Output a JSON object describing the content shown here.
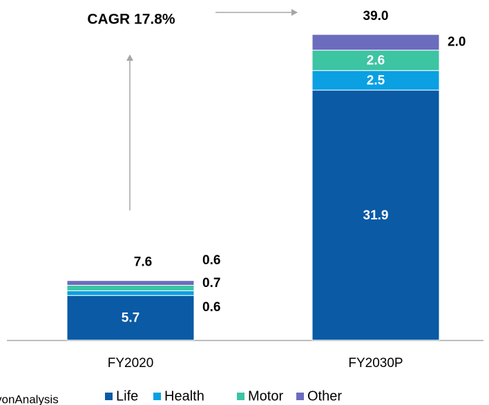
{
  "chart_data": {
    "type": "stacked-bar",
    "annotation": "CAGR 17.8%",
    "source": "yonAnalysis",
    "categories": [
      "FY2020",
      "FY2030P"
    ],
    "series": [
      {
        "name": "Life",
        "color": "#0a5aa5",
        "values": [
          5.7,
          31.9
        ]
      },
      {
        "name": "Health",
        "color": "#0aa0e2",
        "values": [
          0.6,
          2.5
        ]
      },
      {
        "name": "Motor",
        "color": "#3dc4a2",
        "values": [
          0.7,
          2.6
        ]
      },
      {
        "name": "Other",
        "color": "#6b6cbd",
        "values": [
          0.6,
          2.0
        ],
        "value_labels": [
          "0.6",
          "2.0"
        ]
      }
    ],
    "totals": [
      7.6,
      39.0
    ],
    "total_labels": [
      "7.6",
      "39.0"
    ]
  }
}
